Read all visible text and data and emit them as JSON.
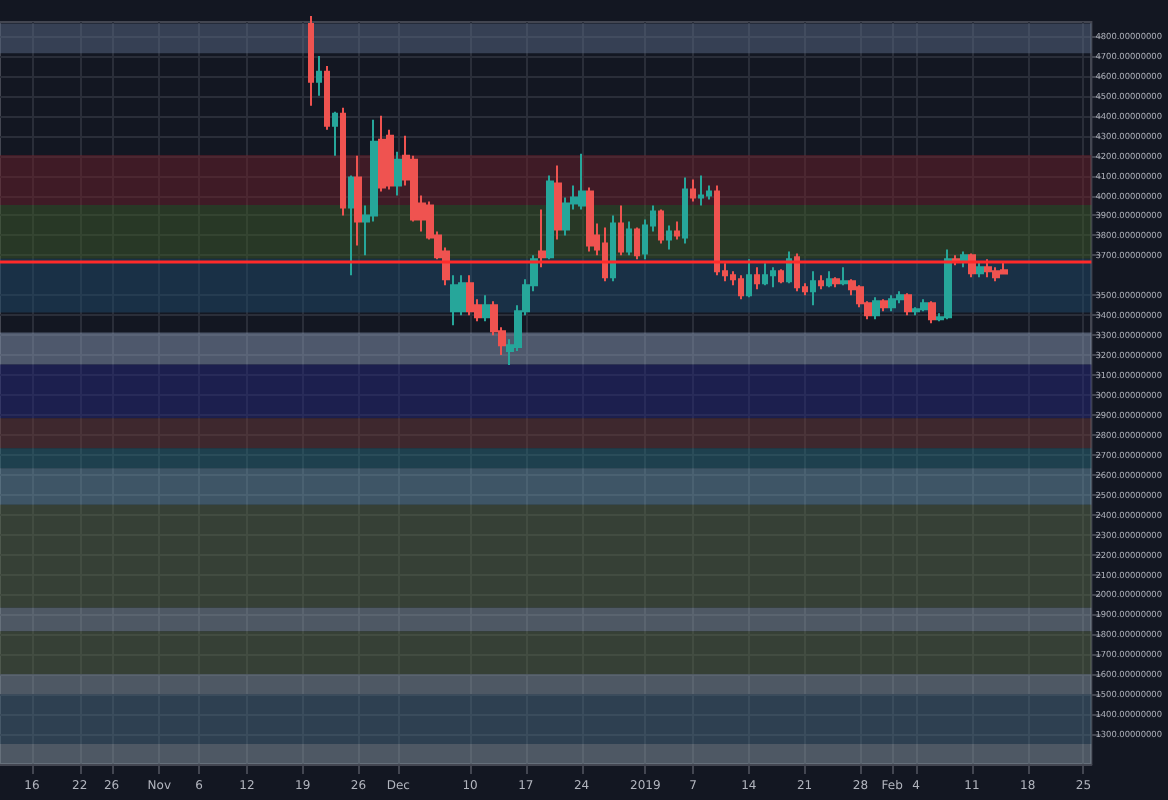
{
  "chart_data": {
    "type": "candlestick",
    "x": [
      "2018-11-20",
      "2018-11-21",
      "2018-11-22",
      "2018-11-23",
      "2018-11-24",
      "2018-11-25",
      "2018-11-26",
      "2018-11-27",
      "2018-11-28",
      "2018-11-29",
      "2018-11-30",
      "2018-12-01",
      "2018-12-02",
      "2018-12-03",
      "2018-12-04",
      "2018-12-05",
      "2018-12-06",
      "2018-12-07",
      "2018-12-08",
      "2018-12-09",
      "2018-12-10",
      "2018-12-11",
      "2018-12-12",
      "2018-12-13",
      "2018-12-14",
      "2018-12-15",
      "2018-12-16",
      "2018-12-17",
      "2018-12-18",
      "2018-12-19",
      "2018-12-20",
      "2018-12-21",
      "2018-12-22",
      "2018-12-23",
      "2018-12-24",
      "2018-12-25",
      "2018-12-26",
      "2018-12-27",
      "2018-12-28",
      "2018-12-29",
      "2018-12-30",
      "2018-12-31",
      "2019-01-01",
      "2019-01-02",
      "2019-01-03",
      "2019-01-04",
      "2019-01-05",
      "2019-01-06",
      "2019-01-07",
      "2019-01-08",
      "2019-01-09",
      "2019-01-10",
      "2019-01-11",
      "2019-01-12",
      "2019-01-13",
      "2019-01-14",
      "2019-01-15",
      "2019-01-16",
      "2019-01-17",
      "2019-01-18",
      "2019-01-19",
      "2019-01-20",
      "2019-01-21",
      "2019-01-22",
      "2019-01-23",
      "2019-01-24",
      "2019-01-25",
      "2019-01-26",
      "2019-01-27",
      "2019-01-28",
      "2019-01-29",
      "2019-01-30",
      "2019-01-31",
      "2019-02-01",
      "2019-02-02",
      "2019-02-03",
      "2019-02-04",
      "2019-02-05",
      "2019-02-06",
      "2019-02-07",
      "2019-02-08",
      "2019-02-09",
      "2019-02-10",
      "2019-02-11",
      "2019-02-12",
      "2019-02-13",
      "2019-02-14",
      "2019-02-15"
    ],
    "ohlc": [
      [
        4860,
        4900,
        4450,
        4570
      ],
      [
        4570,
        4700,
        4500,
        4620
      ],
      [
        4620,
        4650,
        4330,
        4350
      ],
      [
        4350,
        4420,
        4200,
        4410
      ],
      [
        4410,
        4440,
        3900,
        3940
      ],
      [
        3940,
        4100,
        3600,
        4090
      ],
      [
        4090,
        4200,
        3750,
        3870
      ],
      [
        3870,
        3950,
        3700,
        3900
      ],
      [
        3900,
        4380,
        3870,
        4270
      ],
      [
        4280,
        4400,
        4020,
        4040
      ],
      [
        4300,
        4330,
        4030,
        4050
      ],
      [
        4050,
        4220,
        4000,
        4180
      ],
      [
        4200,
        4300,
        4050,
        4080
      ],
      [
        4180,
        4200,
        3870,
        3880
      ],
      [
        3960,
        4000,
        3820,
        3880
      ],
      [
        3950,
        3970,
        3780,
        3790
      ],
      [
        3800,
        3820,
        3680,
        3690
      ],
      [
        3720,
        3740,
        3550,
        3580
      ],
      [
        3420,
        3600,
        3350,
        3550
      ],
      [
        3420,
        3600,
        3400,
        3560
      ],
      [
        3560,
        3600,
        3400,
        3420
      ],
      [
        3450,
        3480,
        3370,
        3390
      ],
      [
        3390,
        3500,
        3370,
        3450
      ],
      [
        3450,
        3470,
        3300,
        3320
      ],
      [
        3320,
        3340,
        3200,
        3250
      ],
      [
        3220,
        3280,
        3150,
        3250
      ],
      [
        3240,
        3450,
        3220,
        3420
      ],
      [
        3420,
        3580,
        3400,
        3550
      ],
      [
        3550,
        3700,
        3520,
        3680
      ],
      [
        3720,
        3930,
        3640,
        3690
      ],
      [
        3690,
        4100,
        3680,
        4070
      ],
      [
        4060,
        4150,
        3780,
        3830
      ],
      [
        3830,
        3990,
        3800,
        3960
      ],
      [
        3960,
        4050,
        3930,
        3990
      ],
      [
        3950,
        4210,
        3930,
        4020
      ],
      [
        4020,
        4040,
        3720,
        3750
      ],
      [
        3800,
        3860,
        3700,
        3730
      ],
      [
        3760,
        3840,
        3570,
        3590
      ],
      [
        3590,
        3900,
        3570,
        3860
      ],
      [
        3860,
        3950,
        3700,
        3720
      ],
      [
        3720,
        3870,
        3700,
        3830
      ],
      [
        3830,
        3840,
        3680,
        3700
      ],
      [
        3710,
        3880,
        3680,
        3850
      ],
      [
        3850,
        3950,
        3820,
        3920
      ],
      [
        3920,
        3930,
        3760,
        3780
      ],
      [
        3780,
        3850,
        3730,
        3820
      ],
      [
        3820,
        3870,
        3780,
        3800
      ],
      [
        3790,
        4090,
        3760,
        4030
      ],
      [
        4030,
        4080,
        3970,
        3990
      ],
      [
        3990,
        4100,
        3950,
        4000
      ],
      [
        4000,
        4050,
        3980,
        4020
      ],
      [
        4020,
        4050,
        3600,
        3620
      ],
      [
        3620,
        3660,
        3570,
        3600
      ],
      [
        3600,
        3620,
        3550,
        3580
      ],
      [
        3580,
        3600,
        3480,
        3500
      ],
      [
        3500,
        3680,
        3490,
        3600
      ],
      [
        3600,
        3640,
        3530,
        3560
      ],
      [
        3560,
        3660,
        3550,
        3600
      ],
      [
        3600,
        3640,
        3540,
        3620
      ],
      [
        3620,
        3630,
        3560,
        3570
      ],
      [
        3570,
        3720,
        3560,
        3680
      ],
      [
        3690,
        3710,
        3520,
        3540
      ],
      [
        3540,
        3560,
        3500,
        3520
      ],
      [
        3520,
        3620,
        3450,
        3570
      ],
      [
        3570,
        3600,
        3530,
        3550
      ],
      [
        3550,
        3620,
        3540,
        3580
      ],
      [
        3580,
        3590,
        3540,
        3560
      ],
      [
        3560,
        3640,
        3550,
        3570
      ],
      [
        3570,
        3580,
        3500,
        3530
      ],
      [
        3540,
        3550,
        3440,
        3460
      ],
      [
        3460,
        3470,
        3380,
        3400
      ],
      [
        3400,
        3490,
        3380,
        3470
      ],
      [
        3470,
        3480,
        3420,
        3440
      ],
      [
        3440,
        3500,
        3420,
        3480
      ],
      [
        3480,
        3520,
        3460,
        3500
      ],
      [
        3500,
        3510,
        3400,
        3420
      ],
      [
        3420,
        3440,
        3400,
        3430
      ],
      [
        3430,
        3480,
        3420,
        3460
      ],
      [
        3460,
        3470,
        3360,
        3380
      ],
      [
        3380,
        3410,
        3370,
        3390
      ],
      [
        3390,
        3730,
        3380,
        3680
      ],
      [
        3680,
        3700,
        3650,
        3670
      ],
      [
        3670,
        3720,
        3640,
        3700
      ],
      [
        3700,
        3710,
        3590,
        3610
      ],
      [
        3610,
        3670,
        3590,
        3640
      ],
      [
        3640,
        3680,
        3590,
        3620
      ],
      [
        3620,
        3640,
        3570,
        3590
      ],
      [
        3626,
        3671,
        3604,
        3609
      ]
    ],
    "colors": [
      "#ef5350",
      "#26a69a",
      "#ef5350",
      "#26a69a",
      "#ef5350",
      "#26a69a",
      "#ef5350",
      "#26a69a",
      "#26a69a",
      "#ef5350",
      "#ef5350",
      "#26a69a",
      "#ef5350",
      "#ef5350",
      "#ef5350",
      "#ef5350",
      "#ef5350",
      "#ef5350",
      "#26a69a",
      "#26a69a",
      "#ef5350",
      "#ef5350",
      "#26a69a",
      "#ef5350",
      "#ef5350",
      "#26a69a",
      "#26a69a",
      "#26a69a",
      "#26a69a",
      "#ef5350",
      "#26a69a",
      "#ef5350",
      "#26a69a",
      "#26a69a",
      "#26a69a",
      "#ef5350",
      "#ef5350",
      "#ef5350",
      "#26a69a",
      "#ef5350",
      "#26a69a",
      "#ef5350",
      "#26a69a",
      "#26a69a",
      "#ef5350",
      "#26a69a",
      "#ef5350",
      "#26a69a",
      "#ef5350",
      "#26a69a",
      "#26a69a",
      "#ef5350",
      "#ef5350",
      "#ef5350",
      "#ef5350",
      "#26a69a",
      "#ef5350",
      "#26a69a",
      "#26a69a",
      "#ef5350",
      "#26a69a",
      "#ef5350",
      "#ef5350",
      "#26a69a",
      "#ef5350",
      "#26a69a",
      "#ef5350",
      "#26a69a",
      "#ef5350",
      "#ef5350",
      "#ef5350",
      "#26a69a",
      "#ef5350",
      "#26a69a",
      "#26a69a",
      "#ef5350",
      "#26a69a",
      "#26a69a",
      "#ef5350",
      "#26a69a",
      "#26a69a",
      "#ef5350",
      "#26a69a",
      "#ef5350",
      "#26a69a",
      "#ef5350",
      "#ef5350",
      "#ef5350"
    ],
    "xlim": [
      "2018-10-12",
      "2019-02-26"
    ],
    "xticks": [
      {
        "value": "2018-10-16",
        "label": "16"
      },
      {
        "value": "2018-10-22",
        "label": "22"
      },
      {
        "value": "2018-10-26",
        "label": "26"
      },
      {
        "value": "2018-11-01",
        "label": "Nov"
      },
      {
        "value": "2018-11-06",
        "label": "6"
      },
      {
        "value": "2018-11-12",
        "label": "12"
      },
      {
        "value": "2018-11-19",
        "label": "19"
      },
      {
        "value": "2018-11-26",
        "label": "26"
      },
      {
        "value": "2018-12-01",
        "label": "Dec"
      },
      {
        "value": "2018-12-10",
        "label": "10"
      },
      {
        "value": "2018-12-17",
        "label": "17"
      },
      {
        "value": "2018-12-24",
        "label": "24"
      },
      {
        "value": "2019-01-01",
        "label": "2019"
      },
      {
        "value": "2019-01-07",
        "label": "7"
      },
      {
        "value": "2019-01-14",
        "label": "14"
      },
      {
        "value": "2019-01-21",
        "label": "21"
      },
      {
        "value": "2019-01-28",
        "label": "28"
      },
      {
        "value": "2019-02-01",
        "label": "Feb"
      },
      {
        "value": "2019-02-04",
        "label": "4"
      },
      {
        "value": "2019-02-11",
        "label": "11"
      },
      {
        "value": "2019-02-18",
        "label": "18"
      },
      {
        "value": "2019-02-25",
        "label": "25"
      }
    ],
    "ylim": [
      1150,
      4870
    ],
    "yticks": [
      {
        "value": 1300,
        "label": "1300.00000000"
      },
      {
        "value": 1400,
        "label": "1400.00000000"
      },
      {
        "value": 1500,
        "label": "1500.00000000"
      },
      {
        "value": 1600,
        "label": "1600.00000000"
      },
      {
        "value": 1700,
        "label": "1700.00000000"
      },
      {
        "value": 1800,
        "label": "1800.00000000"
      },
      {
        "value": 1900,
        "label": "1900.00000000"
      },
      {
        "value": 2000,
        "label": "2000.00000000"
      },
      {
        "value": 2100,
        "label": "2100.00000000"
      },
      {
        "value": 2200,
        "label": "2200.00000000"
      },
      {
        "value": 2300,
        "label": "2300.00000000"
      },
      {
        "value": 2400,
        "label": "2400.00000000"
      },
      {
        "value": 2500,
        "label": "2500.00000000"
      },
      {
        "value": 2600,
        "label": "2600.00000000"
      },
      {
        "value": 2700,
        "label": "2700.00000000"
      },
      {
        "value": 2800,
        "label": "2800.00000000"
      },
      {
        "value": 2900,
        "label": "2900.00000000"
      },
      {
        "value": 3000,
        "label": "3000.00000000"
      },
      {
        "value": 3100,
        "label": "3100.00000000"
      },
      {
        "value": 3200,
        "label": "3200.00000000"
      },
      {
        "value": 3300,
        "label": "3300.00000000"
      },
      {
        "value": 3400,
        "label": "3400.00000000"
      },
      {
        "value": 3500,
        "label": "3500.00000000"
      },
      {
        "value": 3700,
        "label": "3700.00000000"
      },
      {
        "value": 3800,
        "label": "3800.00000000"
      },
      {
        "value": 3900,
        "label": "3900.00000000"
      },
      {
        "value": 4000,
        "label": "4000.00000000"
      },
      {
        "value": 4100,
        "label": "4100.00000000"
      },
      {
        "value": 4200,
        "label": "4200.00000000"
      },
      {
        "value": 4300,
        "label": "4300.00000000"
      },
      {
        "value": 4400,
        "label": "4400.00000000"
      },
      {
        "value": 4500,
        "label": "4500.00000000"
      },
      {
        "value": 4600,
        "label": "4600.00000000"
      },
      {
        "value": 4700,
        "label": "4700.00000000"
      },
      {
        "value": 4800,
        "label": "4800.00000000"
      }
    ],
    "bands": [
      {
        "axis": "y",
        "from": 4713,
        "to": 4863,
        "color": "#5a6a86"
      },
      {
        "axis": "y",
        "from": 3953,
        "to": 4203,
        "color": "#6b1f2a"
      },
      {
        "axis": "y",
        "from": 3683,
        "to": 3953,
        "color": "#3d5a2a"
      },
      {
        "axis": "y",
        "from": 3413,
        "to": 3683,
        "color": "#1f4a6a"
      },
      {
        "axis": "y",
        "from": 3153,
        "to": 3313,
        "color": "#8a9ab6"
      },
      {
        "axis": "y",
        "from": 2883,
        "to": 3153,
        "color": "#25287a"
      },
      {
        "axis": "y",
        "from": 2733,
        "to": 2883,
        "color": "#6a3a3a"
      },
      {
        "axis": "y",
        "from": 2633,
        "to": 2733,
        "color": "#2a6a7a"
      },
      {
        "axis": "y",
        "from": 2450,
        "to": 2633,
        "color": "#6a93aa"
      },
      {
        "axis": "y",
        "from": 1933,
        "to": 2450,
        "color": "#5a6a4a"
      },
      {
        "axis": "y",
        "from": 1816,
        "to": 1933,
        "color": "#8a9aa6"
      },
      {
        "axis": "y",
        "from": 1600,
        "to": 1816,
        "color": "#5a6a4a"
      },
      {
        "axis": "y",
        "from": 1500,
        "to": 1600,
        "color": "#8a9aa6"
      },
      {
        "axis": "y",
        "from": 1250,
        "to": 1500,
        "color": "#4a6a80"
      },
      {
        "axis": "y",
        "from": 1150,
        "to": 1250,
        "color": "#8a9aa6"
      }
    ],
    "ref_lines": [
      {
        "axis": "y",
        "value": 3667,
        "color": "#ff2a2a"
      }
    ],
    "grid": true
  }
}
